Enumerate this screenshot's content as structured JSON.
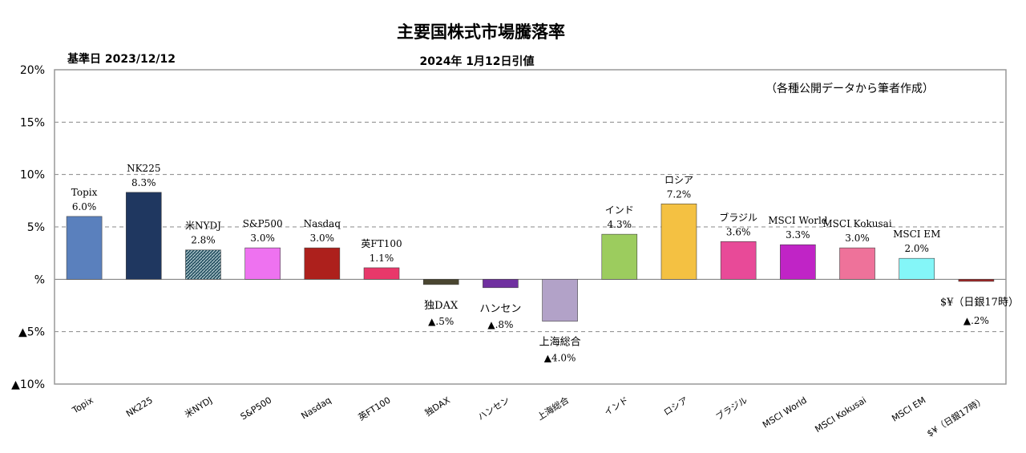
{
  "chart_data": {
    "type": "bar",
    "title": "主要国株式市場騰落率",
    "base_date": "基準日 2023/12/12",
    "subtitle": "2024年 1月12日引値",
    "source_note": "（各種公開データから筆者作成）",
    "xlabel": "",
    "ylabel": "",
    "ylim": [
      -10,
      20
    ],
    "yticks": [
      20,
      15,
      10,
      5,
      0,
      -5,
      -10
    ],
    "ytick_labels": [
      "20%",
      "15%",
      "10%",
      "5%",
      "%",
      "▲5%",
      "▲10%"
    ],
    "grid": true,
    "categories": [
      "Topix",
      "NK225",
      "米NYDJ",
      "S&P500",
      "Nasdaq",
      "英FT100",
      "独DAX",
      "ハンセン",
      "上海総合",
      "インド",
      "ロシア",
      "ブラジル",
      "MSCI World",
      "MSCI Kokusai",
      "MSCI EM",
      "$¥（日銀17時）"
    ],
    "values": [
      6.0,
      8.3,
      2.8,
      3.0,
      3.0,
      1.1,
      -0.5,
      -0.8,
      -4.0,
      4.3,
      7.2,
      3.6,
      3.3,
      3.0,
      2.0,
      -0.2
    ],
    "value_labels": [
      "6.0%",
      "8.3%",
      "2.8%",
      "3.0%",
      "3.0%",
      "1.1%",
      "▲.5%",
      "▲.8%",
      "▲4.0%",
      "4.3%",
      "7.2%",
      "3.6%",
      "3.3%",
      "3.0%",
      "2.0%",
      "▲.2%"
    ],
    "colors": [
      "#5a80bd",
      "#1f3760",
      "#3a6474",
      "#ee72f0",
      "#ad201c",
      "#e8386a",
      "#4a4630",
      "#7030a0",
      "#b2a2c8",
      "#9ccc5e",
      "#f4c142",
      "#e84a98",
      "#c024c6",
      "#ee729a",
      "#84f6f8",
      "#a02424"
    ]
  }
}
